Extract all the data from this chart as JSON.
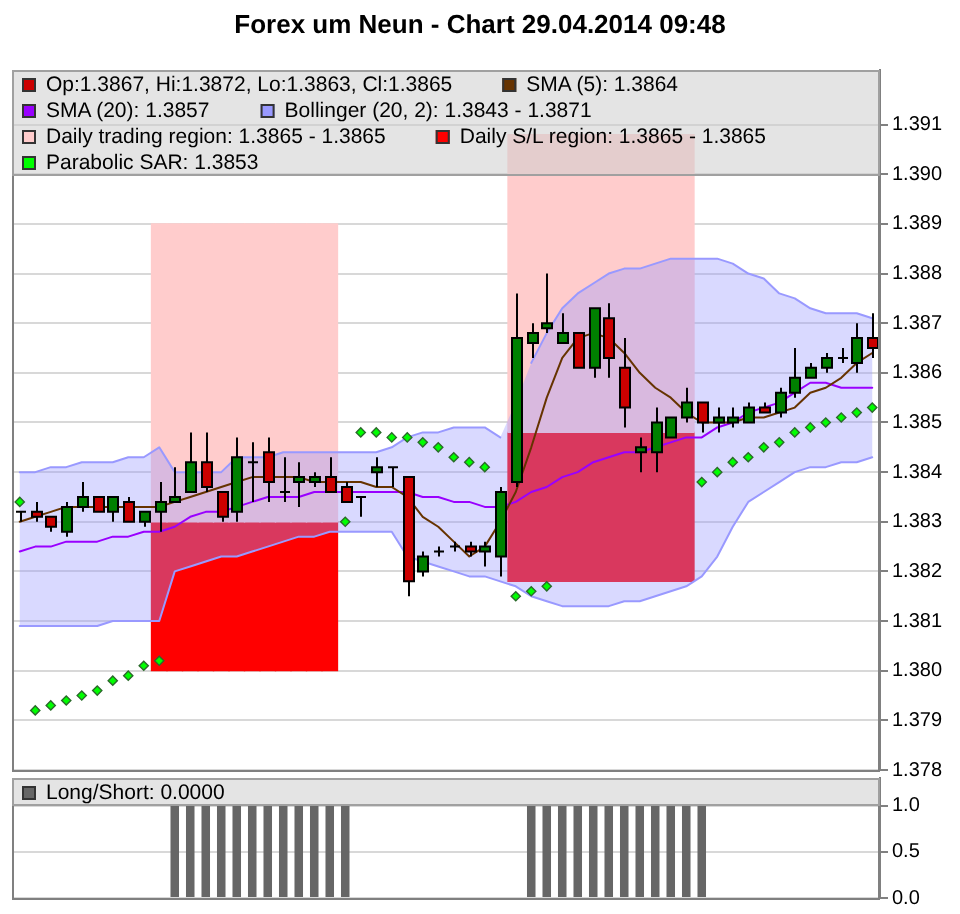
{
  "chart_data": [
    {
      "type": "candlestick",
      "title": "Forex um Neun - Chart 29.04.2014 09:48",
      "categories": [
        null,
        null,
        null,
        null,
        null,
        null,
        null,
        null,
        null,
        null,
        null,
        null,
        null,
        null,
        null,
        null,
        null,
        null,
        null,
        null,
        null,
        null,
        null,
        null,
        null,
        null,
        null,
        null,
        null,
        null,
        null,
        null,
        null,
        null,
        null,
        null,
        null,
        null,
        null,
        null,
        null,
        null,
        null,
        null,
        null,
        null,
        null,
        null,
        null,
        null,
        null,
        null,
        null,
        null,
        null,
        null
      ],
      "series": [
        {
          "name": "Op:1.3867, Hi:1.3872, Lo:1.3863, Cl:1.3865",
          "color": "#cc0000",
          "ohlc": [
            [
              1.3832,
              1.3832,
              1.383,
              1.3832
            ],
            [
              1.3832,
              1.3834,
              1.383,
              1.3831
            ],
            [
              1.3831,
              1.3831,
              1.3828,
              1.3829
            ],
            [
              1.3828,
              1.3834,
              1.3827,
              1.3833
            ],
            [
              1.3833,
              1.3838,
              1.3832,
              1.3835
            ],
            [
              1.3835,
              1.3835,
              1.3832,
              1.3832
            ],
            [
              1.3832,
              1.3835,
              1.383,
              1.3835
            ],
            [
              1.3834,
              1.3835,
              1.383,
              1.383
            ],
            [
              1.383,
              1.3832,
              1.3829,
              1.3832
            ],
            [
              1.3832,
              1.3838,
              1.3828,
              1.3834
            ],
            [
              1.3834,
              1.3841,
              1.3834,
              1.3835
            ],
            [
              1.3836,
              1.3848,
              1.3836,
              1.3842
            ],
            [
              1.3842,
              1.3848,
              1.3836,
              1.3837
            ],
            [
              1.3836,
              1.3836,
              1.383,
              1.3831
            ],
            [
              1.3832,
              1.3847,
              1.383,
              1.3843
            ],
            [
              1.3842,
              1.3846,
              1.3834,
              1.3842
            ],
            [
              1.3844,
              1.3847,
              1.3834,
              1.3838
            ],
            [
              1.3836,
              1.3843,
              1.3834,
              1.3836
            ],
            [
              1.3838,
              1.3842,
              1.3833,
              1.3839
            ],
            [
              1.3838,
              1.384,
              1.3837,
              1.3839
            ],
            [
              1.3839,
              1.3843,
              1.3836,
              1.3836
            ],
            [
              1.3837,
              1.3838,
              1.3834,
              1.3834
            ],
            [
              1.3835,
              1.3835,
              1.3831,
              1.3835
            ],
            [
              1.384,
              1.3843,
              1.3837,
              1.3841
            ],
            [
              1.3841,
              1.3841,
              1.3837,
              1.3841
            ],
            [
              1.3839,
              1.3839,
              1.3815,
              1.3818
            ],
            [
              1.382,
              1.3824,
              1.3819,
              1.3823
            ],
            [
              1.3824,
              1.3825,
              1.3823,
              1.3824
            ],
            [
              1.3825,
              1.3826,
              1.3824,
              1.3825
            ],
            [
              1.3825,
              1.3826,
              1.3823,
              1.3824
            ],
            [
              1.3824,
              1.3826,
              1.3821,
              1.3825
            ],
            [
              1.3823,
              1.3837,
              1.3819,
              1.3836
            ],
            [
              1.3838,
              1.3876,
              1.3837,
              1.3867
            ],
            [
              1.3866,
              1.387,
              1.3863,
              1.3868
            ],
            [
              1.3869,
              1.388,
              1.3868,
              1.387
            ],
            [
              1.3866,
              1.3872,
              1.3866,
              1.3868
            ],
            [
              1.3868,
              1.3868,
              1.3861,
              1.3861
            ],
            [
              1.3861,
              1.3873,
              1.3859,
              1.3873
            ],
            [
              1.3871,
              1.3874,
              1.3859,
              1.3863
            ],
            [
              1.3861,
              1.3867,
              1.3849,
              1.3853
            ],
            [
              1.3844,
              1.3847,
              1.384,
              1.3845
            ],
            [
              1.3844,
              1.3853,
              1.384,
              1.385
            ],
            [
              1.3847,
              1.3851,
              1.3847,
              1.3851
            ],
            [
              1.3851,
              1.3857,
              1.385,
              1.3854
            ],
            [
              1.3854,
              1.3854,
              1.3848,
              1.385
            ],
            [
              1.385,
              1.3853,
              1.3848,
              1.3851
            ],
            [
              1.385,
              1.3853,
              1.3849,
              1.3851
            ],
            [
              1.385,
              1.3854,
              1.385,
              1.3853
            ],
            [
              1.3853,
              1.3854,
              1.3852,
              1.3852
            ],
            [
              1.3852,
              1.3857,
              1.3851,
              1.3856
            ],
            [
              1.3856,
              1.3865,
              1.3855,
              1.3859
            ],
            [
              1.3859,
              1.3862,
              1.3859,
              1.3861
            ],
            [
              1.3861,
              1.3864,
              1.386,
              1.3863
            ],
            [
              1.3863,
              1.3865,
              1.3862,
              1.3863
            ],
            [
              1.3862,
              1.387,
              1.386,
              1.3867
            ],
            [
              1.3867,
              1.3872,
              1.3863,
              1.3865
            ]
          ],
          "colors": [
            "#000000",
            "#cc0000",
            "#cc0000",
            "#008000",
            "#008000",
            "#cc0000",
            "#008000",
            "#cc0000",
            "#008000",
            "#008000",
            "#008000",
            "#008000",
            "#cc0000",
            "#cc0000",
            "#008000",
            "#000000",
            "#cc0000",
            "#000000",
            "#008000",
            "#008000",
            "#cc0000",
            "#cc0000",
            "#000000",
            "#008000",
            "#000000",
            "#cc0000",
            "#008000",
            "#000000",
            "#000000",
            "#cc0000",
            "#008000",
            "#008000",
            "#008000",
            "#008000",
            "#008000",
            "#008000",
            "#cc0000",
            "#008000",
            "#cc0000",
            "#cc0000",
            "#008000",
            "#008000",
            "#008000",
            "#008000",
            "#cc0000",
            "#008000",
            "#008000",
            "#008000",
            "#cc0000",
            "#008000",
            "#008000",
            "#008000",
            "#008000",
            "#000000",
            "#008000",
            "#cc0000"
          ]
        },
        {
          "name": "SMA (5): 1.3864",
          "type": "line",
          "color": "#663300",
          "values": [
            1.383,
            1.3831,
            1.3832,
            1.3833,
            1.3833,
            1.3833,
            1.3833,
            1.3833,
            1.3833,
            1.3833,
            1.3834,
            1.3835,
            1.3836,
            1.3837,
            1.3838,
            1.3839,
            1.3839,
            1.3839,
            1.3839,
            1.3838,
            1.3838,
            1.3838,
            1.3838,
            1.3837,
            1.3837,
            1.3835,
            1.3831,
            1.3829,
            1.3826,
            1.3823,
            1.3825,
            1.383,
            1.3836,
            1.3845,
            1.3855,
            1.3863,
            1.3867,
            1.3868,
            1.3867,
            1.3864,
            1.386,
            1.3857,
            1.3855,
            1.3852,
            1.385,
            1.385,
            1.385,
            1.3851,
            1.3851,
            1.3852,
            1.3853,
            1.3856,
            1.3857,
            1.3859,
            1.3862,
            1.3864
          ]
        },
        {
          "name": "SMA (20): 1.3857",
          "type": "line",
          "color": "#9900ff",
          "values": [
            1.3824,
            1.3825,
            1.3825,
            1.3826,
            1.3826,
            1.3826,
            1.3827,
            1.3827,
            1.3828,
            1.3828,
            1.3829,
            1.3831,
            1.3832,
            1.3832,
            1.3833,
            1.3834,
            1.3835,
            1.3835,
            1.3835,
            1.3836,
            1.3836,
            1.3836,
            1.3836,
            1.3836,
            1.3836,
            1.3836,
            1.3835,
            1.3835,
            1.3834,
            1.3834,
            1.3833,
            1.3833,
            1.3834,
            1.3836,
            1.3837,
            1.3839,
            1.384,
            1.3842,
            1.3843,
            1.3844,
            1.3844,
            1.3845,
            1.3846,
            1.3847,
            1.3847,
            1.3849,
            1.385,
            1.3852,
            1.3853,
            1.3854,
            1.3856,
            1.3858,
            1.3858,
            1.3857,
            1.3857,
            1.3857
          ]
        },
        {
          "name": "Bollinger (20, 2): 1.3843 - 1.3871",
          "type": "line",
          "color": "#9999ff",
          "line_style": "solid",
          "values": [
            1.384,
            1.384,
            1.3841,
            1.3841,
            1.3842,
            1.3842,
            1.3842,
            1.3843,
            1.3843,
            1.3845,
            1.384,
            1.384,
            1.384,
            1.384,
            1.3843,
            1.3843,
            1.3843,
            1.3844,
            1.3844,
            1.3844,
            1.3844,
            1.3844,
            1.3844,
            1.3844,
            1.3845,
            1.3847,
            1.3848,
            1.3848,
            1.3849,
            1.3849,
            1.3849,
            1.3847,
            null,
            1.3862,
            1.3868,
            1.3873,
            1.3876,
            1.3878,
            1.388,
            1.3881,
            1.3881,
            1.3882,
            1.3883,
            1.3883,
            1.3883,
            1.3883,
            1.3882,
            1.388,
            1.3879,
            1.3876,
            1.3875,
            1.3873,
            1.3872,
            1.3872,
            1.3872,
            1.3871
          ],
          "upper": [
            1.384,
            1.384,
            1.3841,
            1.3841,
            1.3842,
            1.3842,
            1.3842,
            1.3843,
            1.3843,
            1.3845,
            1.384,
            1.384,
            1.384,
            1.384,
            1.3843,
            1.3843,
            1.3843,
            1.3844,
            1.3844,
            1.3844,
            1.3844,
            1.3844,
            1.3844,
            1.3844,
            1.3845,
            1.3847,
            1.3848,
            1.3848,
            1.3849,
            1.3849,
            1.3849,
            1.3847,
            1.3854,
            1.3862,
            1.3868,
            1.3873,
            1.3876,
            1.3878,
            1.388,
            1.3881,
            1.3881,
            1.3882,
            1.3883,
            1.3883,
            1.3883,
            1.3883,
            1.3882,
            1.388,
            1.3879,
            1.3876,
            1.3875,
            1.3873,
            1.3872,
            1.3872,
            1.3872,
            1.3871
          ],
          "lower": [
            1.3809,
            1.3809,
            1.3809,
            1.3809,
            1.3809,
            1.3809,
            1.381,
            1.381,
            1.381,
            1.381,
            1.382,
            1.3821,
            1.3822,
            1.3823,
            1.3823,
            1.3824,
            1.3825,
            1.3826,
            1.3827,
            1.3827,
            1.3828,
            1.3828,
            1.3828,
            1.3828,
            1.3828,
            1.3823,
            1.3822,
            1.3821,
            1.382,
            1.3819,
            1.3819,
            1.3818,
            1.3817,
            1.3815,
            1.3814,
            1.3813,
            1.3813,
            1.3813,
            1.3813,
            1.3814,
            1.3814,
            1.3815,
            1.3816,
            1.3817,
            1.3819,
            1.3823,
            1.3829,
            1.3834,
            1.3836,
            1.3838,
            1.384,
            1.3841,
            1.3841,
            1.3842,
            1.3842,
            1.3843
          ]
        },
        {
          "type": "line",
          "color": "#9999ff",
          "line_style": "solid",
          "values": [
            1.3809,
            1.3809,
            1.3809,
            1.3809,
            1.3809,
            1.3809,
            1.381,
            1.381,
            1.381,
            1.381,
            1.382,
            1.3821,
            1.3822,
            1.3823,
            1.3823,
            1.3824,
            1.3825,
            1.3826,
            1.3827,
            1.3827,
            1.3828,
            1.3828,
            1.3828,
            1.3828,
            1.3828,
            1.3823,
            1.3822,
            1.3821,
            1.382,
            1.3819,
            1.3819,
            1.3818,
            1.3817,
            1.3815,
            1.3814,
            1.3813,
            1.3813,
            1.3813,
            1.3813,
            1.3814,
            1.3814,
            1.3815,
            1.3816,
            1.3817,
            1.3819,
            1.3823,
            1.3829,
            1.3834,
            1.3836,
            1.3838,
            1.384,
            1.3841,
            1.3841,
            1.3842,
            1.3842,
            1.3843
          ]
        },
        {
          "name": "Daily trading region: 1.3865 - 1.3865",
          "type": "bar",
          "color": "#ffcccc",
          "values": [
            null,
            null,
            null,
            null,
            null,
            null,
            null,
            null,
            null,
            0.006,
            0.006,
            0.006,
            0.006,
            0.006,
            0.006,
            0.006,
            0.006,
            0.006,
            0.006,
            0.006,
            0.006,
            null,
            null,
            null,
            null,
            null,
            null,
            null,
            null,
            null,
            null,
            null,
            0.006,
            0.006,
            0.006,
            0.006,
            0.006,
            0.006,
            0.006,
            0.006,
            0.006,
            0.006,
            0.006,
            0.006,
            null,
            null,
            null,
            null,
            null,
            null,
            null,
            null,
            null,
            null,
            null,
            null
          ],
          "base": [
            null,
            null,
            null,
            null,
            null,
            null,
            null,
            null,
            null,
            1.383,
            1.383,
            1.383,
            1.383,
            1.383,
            1.383,
            1.383,
            1.383,
            1.383,
            1.383,
            1.383,
            1.383,
            null,
            null,
            null,
            null,
            null,
            null,
            null,
            null,
            null,
            null,
            null,
            1.3848,
            1.3848,
            1.3848,
            1.3848,
            1.3848,
            1.3848,
            1.3848,
            1.3848,
            1.3848,
            1.3848,
            1.3848,
            1.3848,
            null,
            null,
            null,
            null,
            null,
            null,
            null,
            null,
            null,
            null,
            null,
            null
          ]
        },
        {
          "name": "Daily S/L region: 1.3865 - 1.3865",
          "type": "bar",
          "color": "#ff0000",
          "values": [
            null,
            null,
            null,
            null,
            null,
            null,
            null,
            null,
            null,
            0.003,
            0.003,
            0.003,
            0.003,
            0.003,
            0.003,
            0.003,
            0.003,
            0.003,
            0.003,
            0.003,
            0.003,
            null,
            null,
            null,
            null,
            null,
            null,
            null,
            null,
            null,
            null,
            null,
            0.003,
            0.003,
            0.003,
            0.003,
            0.003,
            0.003,
            0.003,
            0.003,
            0.003,
            0.003,
            0.003,
            0.003,
            null,
            null,
            null,
            null,
            null,
            null,
            null,
            null,
            null,
            null,
            null,
            null
          ],
          "base": [
            null,
            null,
            null,
            null,
            null,
            null,
            null,
            null,
            null,
            1.38,
            1.38,
            1.38,
            1.38,
            1.38,
            1.38,
            1.38,
            1.38,
            1.38,
            1.38,
            1.38,
            1.38,
            null,
            null,
            null,
            null,
            null,
            null,
            null,
            null,
            null,
            null,
            null,
            1.3818,
            1.3818,
            1.3818,
            1.3818,
            1.3818,
            1.3818,
            1.3818,
            1.3818,
            1.3818,
            1.3818,
            1.3818,
            1.3818,
            null,
            null,
            null,
            null,
            null,
            null,
            null,
            null,
            null,
            null,
            null,
            null
          ]
        },
        {
          "name": "Parabolic SAR: 1.3853",
          "type": "scatter",
          "color": "#00ff00",
          "marker": "diamond",
          "values": [
            1.3834,
            1.3792,
            1.3793,
            1.3794,
            1.3795,
            1.3796,
            1.3798,
            1.3799,
            1.3801,
            1.3802,
            null,
            null,
            null,
            null,
            null,
            null,
            null,
            null,
            null,
            null,
            null,
            1.383,
            1.3848,
            1.3848,
            1.3847,
            1.3847,
            1.3846,
            1.3845,
            1.3843,
            1.3842,
            1.3841,
            null,
            1.3815,
            1.3816,
            1.3817,
            null,
            null,
            null,
            null,
            null,
            null,
            null,
            null,
            null,
            1.3838,
            1.384,
            1.3842,
            1.3843,
            1.3845,
            1.3846,
            1.3848,
            1.3849,
            1.385,
            1.3851,
            1.3852,
            1.3853
          ]
        }
      ],
      "ylim": [
        1.378,
        1.3921
      ],
      "yticks": [
        1.378,
        1.379,
        {
          "value": 1.38,
          "label": "1.380"
        },
        1.381,
        1.382,
        1.383,
        1.384,
        1.385,
        1.386,
        1.387,
        1.388,
        1.389,
        {
          "value": 1.39,
          "label": "1.390"
        },
        1.391
      ],
      "grid": "y",
      "legend": "top"
    },
    {
      "type": "bar",
      "categories": [
        null,
        null,
        null,
        null,
        null,
        null,
        null,
        null,
        null,
        null,
        null,
        null,
        null,
        null,
        null,
        null,
        null,
        null,
        null,
        null,
        null,
        null,
        null,
        null,
        null,
        null,
        null,
        null,
        null,
        null,
        null,
        null,
        null,
        null,
        null,
        null,
        null,
        null,
        null,
        null,
        null,
        null,
        null,
        null,
        null,
        null,
        null,
        null,
        null,
        null,
        null,
        null,
        null,
        null,
        null,
        null
      ],
      "series": [
        {
          "name": "Long/Short: 0.0000",
          "color": "#666666",
          "values": [
            0,
            0,
            0,
            0,
            0,
            0,
            0,
            0,
            0,
            0,
            1,
            1,
            1,
            1,
            1,
            1,
            1,
            1,
            1,
            1,
            1,
            1,
            0,
            0,
            0,
            0,
            0,
            0,
            0,
            0,
            0,
            0,
            0,
            1,
            1,
            1,
            1,
            1,
            1,
            1,
            1,
            1,
            1,
            1,
            1,
            0,
            0,
            0,
            0,
            0,
            0,
            0,
            0,
            0,
            0,
            0
          ]
        }
      ],
      "ylim": [
        0,
        1.3
      ],
      "yticks": [
        {
          "value": 0,
          "label": "0.0"
        },
        0.5,
        {
          "value": 1,
          "label": "1.0"
        }
      ],
      "grid": "y",
      "legend": "top"
    }
  ]
}
